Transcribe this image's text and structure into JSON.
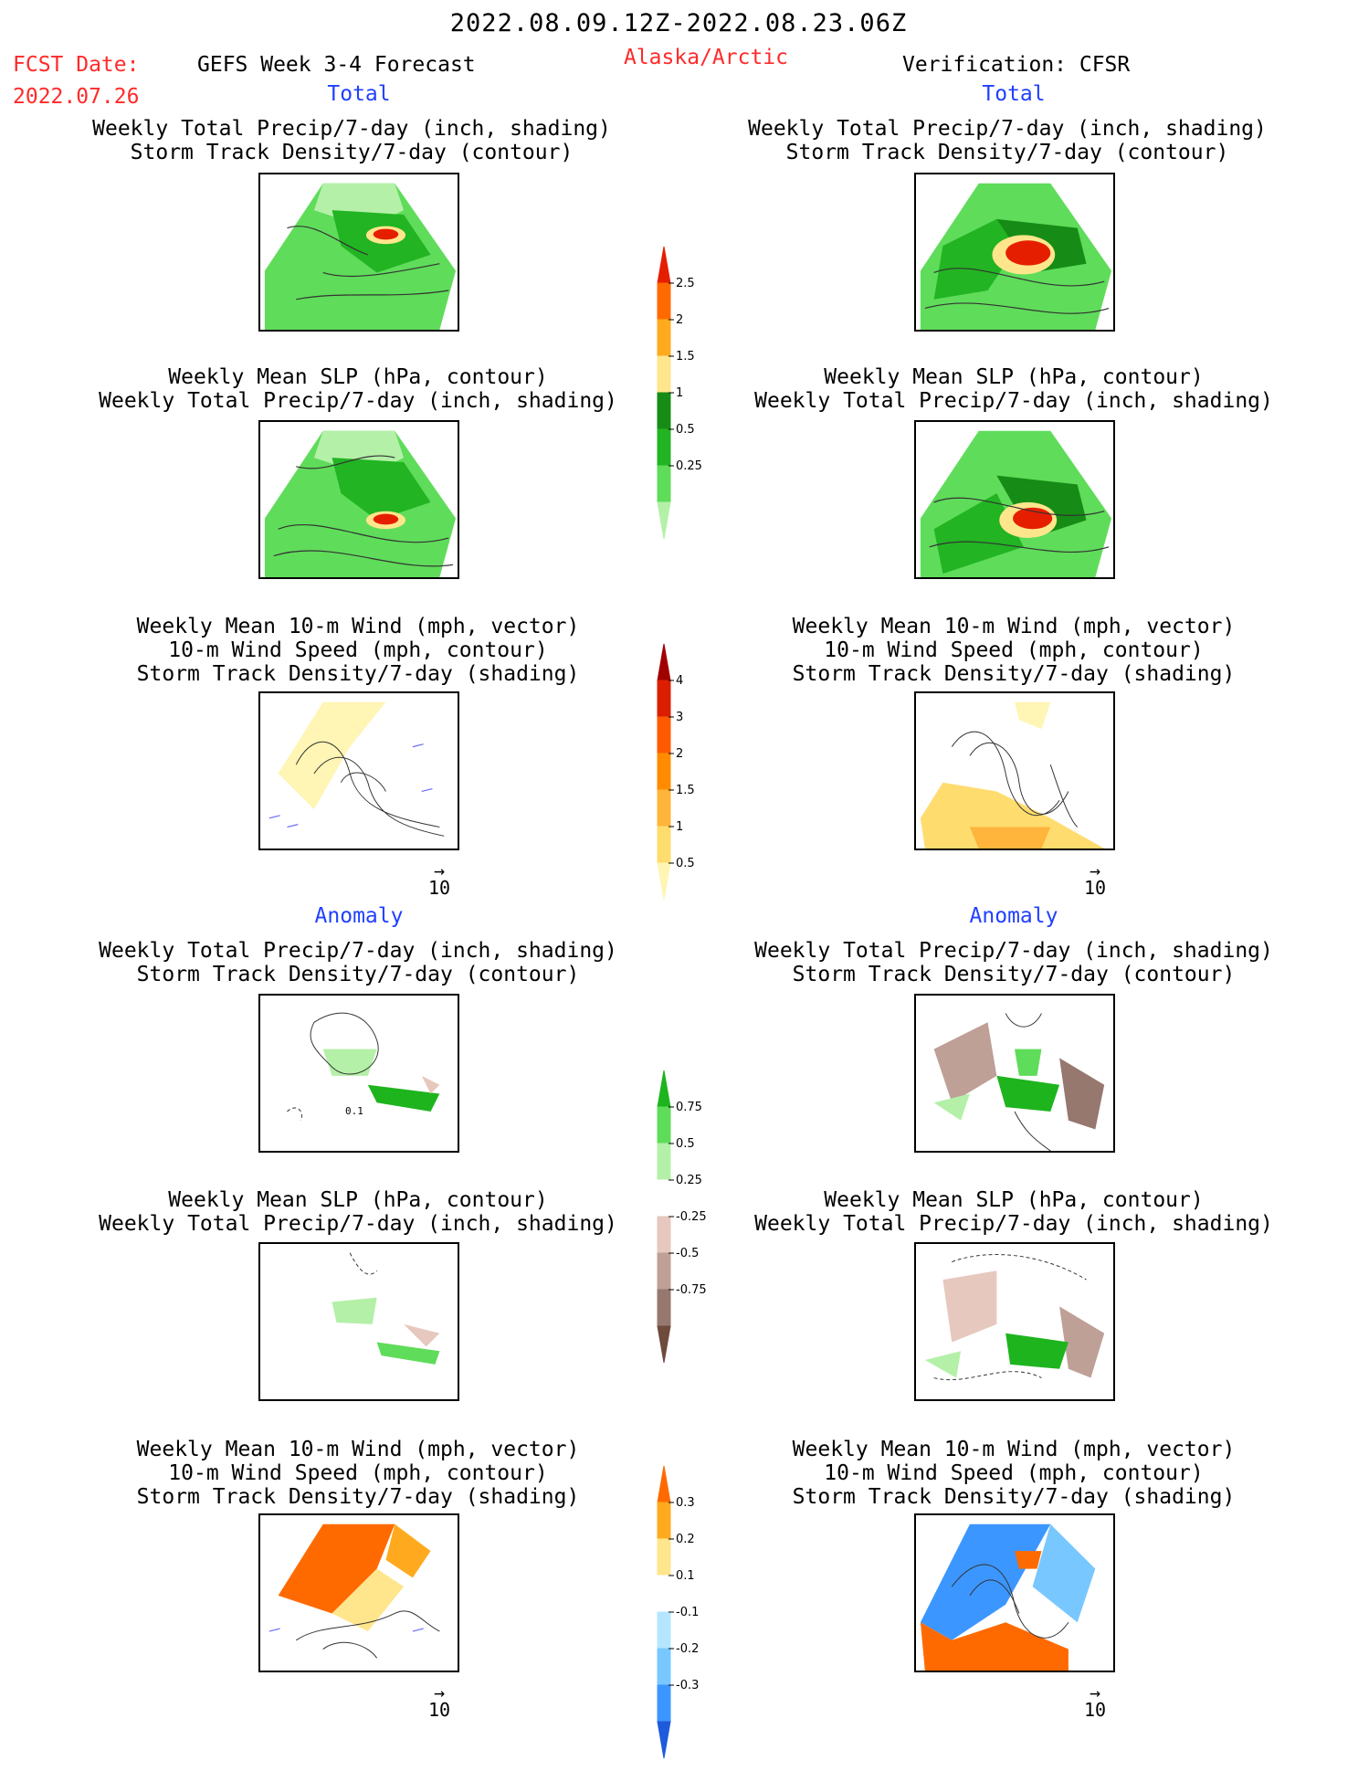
{
  "header": {
    "date_range": "2022.08.09.12Z-2022.08.23.06Z",
    "fcst_label": "FCST Date:",
    "fcst_date": "2022.07.26",
    "forecast_title": "GEFS Week 3-4 Forecast",
    "region": "Alaska/Arctic",
    "verification": "Verification: CFSR"
  },
  "sections": {
    "total": "Total",
    "anomaly": "Anomaly"
  },
  "panel_titles": {
    "precip_track": [
      "Weekly Total Precip/7-day (inch, shading)",
      "Storm Track Density/7-day (contour)"
    ],
    "slp_precip": [
      "Weekly Mean SLP (hPa, contour)",
      "Weekly Total Precip/7-day (inch, shading)"
    ],
    "wind_track": [
      "Weekly Mean 10-m Wind (mph, vector)",
      "10-m Wind Speed (mph, contour)",
      "Storm Track Density/7-day (shading)"
    ]
  },
  "vector_ref": "10",
  "map_label": "0.1",
  "colorbars": [
    {
      "name": "precip-total",
      "ticks": [
        "0.25",
        "0.5",
        "1",
        "1.5",
        "2",
        "2.5"
      ],
      "colors": [
        "#b4f0a8",
        "#5fdc5a",
        "#22b422",
        "#168c16",
        "#ffe68c",
        "#ffaa1e",
        "#ff6a00",
        "#e61e00"
      ]
    },
    {
      "name": "track-total",
      "ticks": [
        "0.5",
        "1",
        "1.5",
        "2",
        "3",
        "4"
      ],
      "colors": [
        "#fff5b4",
        "#ffdc6e",
        "#ffb43c",
        "#ff8c00",
        "#ff5a00",
        "#dc1e00",
        "#a00000"
      ]
    },
    {
      "name": "precip-anom",
      "ticks": [
        "0.75",
        "0.5",
        "0.25",
        "-0.25",
        "-0.5",
        "-0.75"
      ],
      "colors": [
        "#1eb41e",
        "#5fdc5a",
        "#b4f0a8",
        "#ffffff",
        "#e6c8be",
        "#bea096",
        "#96786e",
        "#6e4b3c"
      ]
    },
    {
      "name": "track-anom",
      "ticks": [
        "0.3",
        "0.2",
        "0.1",
        "-0.1",
        "-0.2",
        "-0.3"
      ],
      "colors": [
        "#ff6a00",
        "#ffaa1e",
        "#ffe68c",
        "#ffffff",
        "#b4e6ff",
        "#78c8ff",
        "#3c96ff",
        "#1e5adc"
      ]
    }
  ]
}
